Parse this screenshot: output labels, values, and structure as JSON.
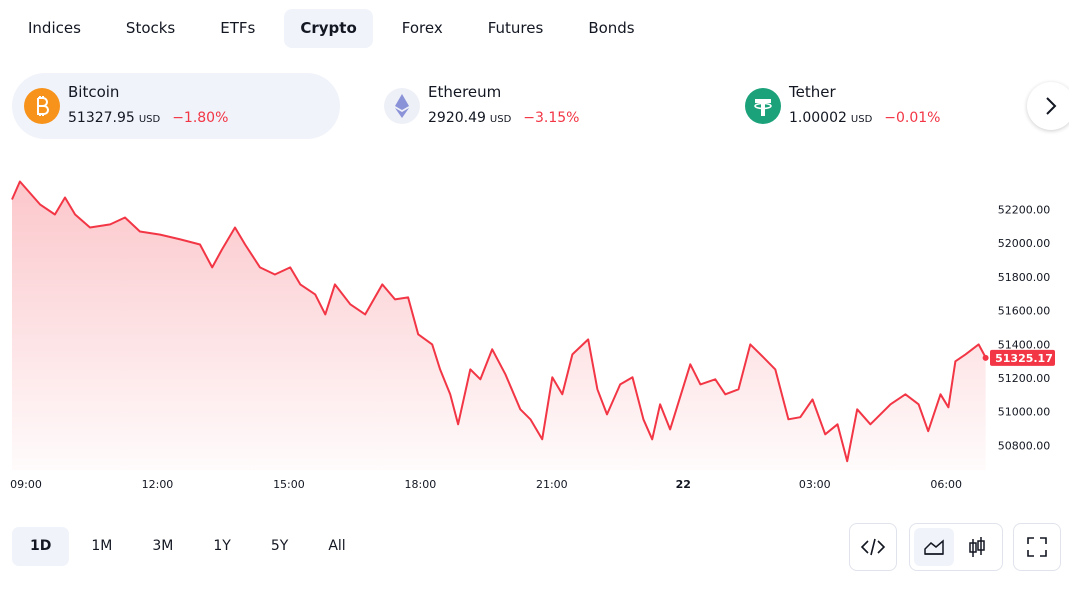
{
  "tabs": [
    "Indices",
    "Stocks",
    "ETFs",
    "Crypto",
    "Forex",
    "Futures",
    "Bonds"
  ],
  "active_tab": "Crypto",
  "tickers": [
    {
      "name": "Bitcoin",
      "price": "51327.95",
      "currency": "USD",
      "change": "−1.80%"
    },
    {
      "name": "Ethereum",
      "price": "2920.49",
      "currency": "USD",
      "change": "−3.15%"
    },
    {
      "name": "Tether",
      "price": "1.00002",
      "currency": "USD",
      "change": "−0.01%"
    }
  ],
  "chart_data": {
    "type": "area",
    "color": "#f23645",
    "x": [
      -0.32,
      -0.14,
      0.32,
      0.66,
      0.89,
      1.12,
      1.46,
      1.92,
      2.26,
      2.6,
      3.06,
      3.52,
      3.97,
      4.25,
      4.47,
      4.77,
      5.0,
      5.34,
      5.68,
      6.03,
      6.26,
      6.6,
      6.83,
      7.05,
      7.4,
      7.74,
      8.13,
      8.42,
      8.72,
      8.95,
      9.27,
      9.45,
      9.68,
      9.86,
      10.14,
      10.37,
      10.64,
      10.94,
      11.28,
      11.51,
      11.78,
      12.01,
      12.24,
      12.47,
      12.83,
      13.04,
      13.26,
      13.56,
      13.84,
      14.09,
      14.29,
      14.47,
      14.7,
      15.16,
      15.39,
      15.73,
      15.96,
      16.26,
      16.53,
      16.83,
      17.1,
      17.4,
      17.67,
      17.95,
      18.24,
      18.52,
      18.74,
      18.97,
      19.27,
      19.73,
      20.07,
      20.37,
      20.59,
      20.87,
      21.05,
      21.21,
      21.44,
      21.74,
      21.9
    ],
    "values": [
      52265,
      52372,
      52236,
      52176,
      52277,
      52176,
      52099,
      52117,
      52158,
      52075,
      52057,
      52028,
      51998,
      51862,
      51968,
      52099,
      51998,
      51862,
      51820,
      51862,
      51761,
      51702,
      51583,
      51761,
      51643,
      51583,
      51761,
      51672,
      51684,
      51465,
      51405,
      51257,
      51109,
      50931,
      51257,
      51198,
      51376,
      51228,
      51020,
      50961,
      50842,
      51210,
      51109,
      51346,
      51435,
      51139,
      50990,
      51168,
      51210,
      50961,
      50842,
      51050,
      50901,
      51287,
      51168,
      51198,
      51109,
      51139,
      51405,
      51328,
      51257,
      50961,
      50973,
      51079,
      50872,
      50931,
      50712,
      51020,
      50931,
      51050,
      51109,
      51050,
      50890,
      51109,
      51032,
      51305,
      51346,
      51405,
      51328
    ],
    "last_value": 51325.17,
    "xlim": [
      -0.32,
      22.0
    ],
    "ylim": [
      50660,
      52440
    ],
    "xticks": [
      {
        "value": 0,
        "label": "09:00"
      },
      {
        "value": 3,
        "label": "12:00"
      },
      {
        "value": 6,
        "label": "15:00"
      },
      {
        "value": 9,
        "label": "18:00"
      },
      {
        "value": 12,
        "label": "21:00"
      },
      {
        "value": 15,
        "label": "22"
      },
      {
        "value": 18,
        "label": "03:00"
      },
      {
        "value": 21,
        "label": "06:00"
      }
    ],
    "yticks": [
      {
        "value": 50800,
        "label": "50800.00"
      },
      {
        "value": 51000,
        "label": "51000.00"
      },
      {
        "value": 51200,
        "label": "51200.00"
      },
      {
        "value": 51400,
        "label": "51400.00"
      },
      {
        "value": 51600,
        "label": "51600.00"
      },
      {
        "value": 51800,
        "label": "51800.00"
      },
      {
        "value": 52000,
        "label": "52000.00"
      },
      {
        "value": 52200,
        "label": "52200.00"
      }
    ]
  },
  "ranges": [
    "1D",
    "1M",
    "3M",
    "1Y",
    "5Y",
    "All"
  ],
  "active_range": "1D"
}
